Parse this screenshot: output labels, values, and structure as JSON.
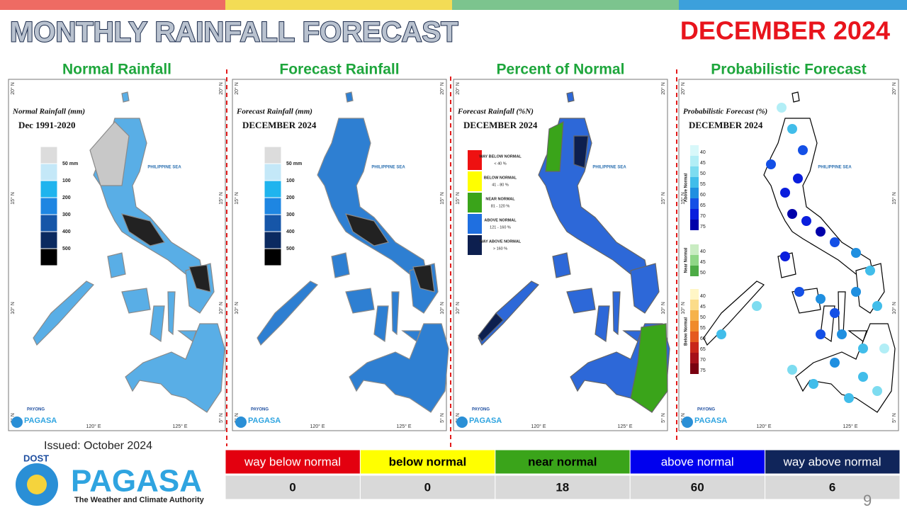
{
  "header": {
    "title": "MONTHLY RAINFALL FORECAST",
    "period": "DECEMBER 2024"
  },
  "map_labels": {
    "sea": "PHILIPPINE SEA",
    "lat": [
      "20° N",
      "15° N",
      "10° N",
      "5° N"
    ],
    "lon": [
      "120° E",
      "125° E"
    ]
  },
  "panels": [
    {
      "title": "Normal Rainfall",
      "map_title": "Normal Rainfall (mm)",
      "map_subtitle": "Dec 1991-2020",
      "legend": [
        "50 mm",
        "100",
        "200",
        "300",
        "400",
        "500"
      ]
    },
    {
      "title": "Forecast Rainfall",
      "map_title": "Forecast Rainfall (mm)",
      "map_subtitle": "DECEMBER 2024",
      "legend": [
        "50 mm",
        "100",
        "200",
        "300",
        "400",
        "500"
      ]
    },
    {
      "title": "Percent of Normal",
      "map_title": "Forecast Rainfall (%N)",
      "map_subtitle": "DECEMBER 2024",
      "legend": [
        {
          "name": "WAY BELOW NORMAL",
          "range": "< 40 %"
        },
        {
          "name": "BELOW NORMAL",
          "range": "41 - 80 %"
        },
        {
          "name": "NEAR NORMAL",
          "range": "81 - 120 %"
        },
        {
          "name": "ABOVE NORMAL",
          "range": "121 - 160 %"
        },
        {
          "name": "WAY ABOVE NORMAL",
          "range": "> 160 %"
        }
      ]
    },
    {
      "title": "Probabilistic Forecast",
      "map_title": "Probabilistic Forecast (%)",
      "map_subtitle": "DECEMBER 2024",
      "legend": [
        {
          "name": "Above Normal",
          "levels": [
            "40",
            "45",
            "50",
            "55",
            "60",
            "65",
            "70",
            "75"
          ]
        },
        {
          "name": "Near Normal",
          "levels": [
            "40",
            "45",
            "50"
          ]
        },
        {
          "name": "Below Normal",
          "levels": [
            "40",
            "45",
            "50",
            "55",
            "60",
            "65",
            "70",
            "75"
          ]
        }
      ]
    }
  ],
  "issued": "Issued: October 2024",
  "logo": {
    "agency": "DOST",
    "name": "PAGASA",
    "tagline": "The Weather and Climate Authority",
    "program": "PAYONG"
  },
  "summary": {
    "columns": [
      "way below normal",
      "below normal",
      "near normal",
      "above normal",
      "way above normal"
    ],
    "values": [
      "0",
      "0",
      "18",
      "60",
      "6"
    ]
  },
  "page_number": "9"
}
